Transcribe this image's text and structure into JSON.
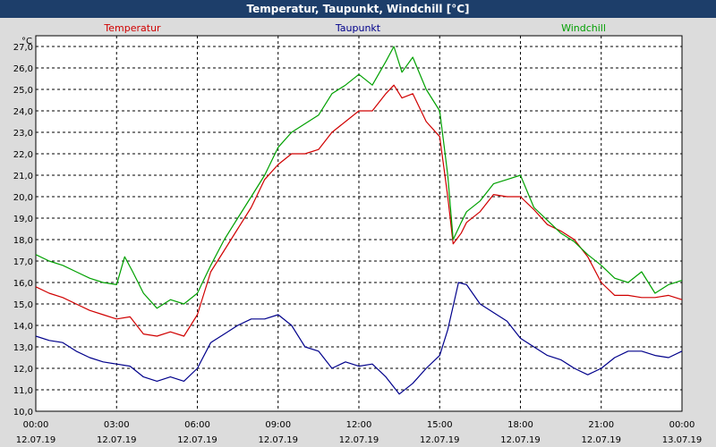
{
  "chart_data": {
    "type": "line",
    "title": "Temperatur, Taupunkt, Windchill [°C]",
    "ylabel": "°C",
    "ylim": [
      10.0,
      27.5
    ],
    "xlim": [
      0,
      24
    ],
    "grid": true,
    "y_ticks": [
      "10,0",
      "11,0",
      "12,0",
      "13,0",
      "14,0",
      "15,0",
      "16,0",
      "17,0",
      "18,0",
      "19,0",
      "20,0",
      "21,0",
      "22,0",
      "23,0",
      "24,0",
      "25,0",
      "26,0",
      "27,0"
    ],
    "y_tick_values": [
      10,
      11,
      12,
      13,
      14,
      15,
      16,
      17,
      18,
      19,
      20,
      21,
      22,
      23,
      24,
      25,
      26,
      27
    ],
    "x_ticks": [
      {
        "time": "00:00",
        "date": "12.07.19",
        "hour": 0
      },
      {
        "time": "03:00",
        "date": "12.07.19",
        "hour": 3
      },
      {
        "time": "06:00",
        "date": "12.07.19",
        "hour": 6
      },
      {
        "time": "09:00",
        "date": "12.07.19",
        "hour": 9
      },
      {
        "time": "12:00",
        "date": "12.07.19",
        "hour": 12
      },
      {
        "time": "15:00",
        "date": "12.07.19",
        "hour": 15
      },
      {
        "time": "18:00",
        "date": "12.07.19",
        "hour": 18
      },
      {
        "time": "21:00",
        "date": "12.07.19",
        "hour": 21
      },
      {
        "time": "00:00",
        "date": "13.07.19",
        "hour": 24
      }
    ],
    "series": [
      {
        "name": "Temperatur",
        "color": "#d00000",
        "x": [
          0,
          0.5,
          1,
          1.5,
          2,
          2.5,
          3,
          3.5,
          4,
          4.5,
          5,
          5.5,
          6,
          6.5,
          7,
          7.5,
          8,
          8.5,
          9,
          9.5,
          10,
          10.5,
          11,
          11.5,
          12,
          12.5,
          13,
          13.3,
          13.6,
          14,
          14.5,
          15,
          15.3,
          15.5,
          15.8,
          16,
          16.5,
          17,
          17.5,
          18,
          18.5,
          19,
          19.5,
          20,
          20.5,
          21,
          21.5,
          22,
          22.5,
          23,
          23.5,
          24
        ],
        "y": [
          15.8,
          15.5,
          15.3,
          15.0,
          14.7,
          14.5,
          14.3,
          14.4,
          13.6,
          13.5,
          13.7,
          13.5,
          14.5,
          16.5,
          17.5,
          18.5,
          19.5,
          20.8,
          21.5,
          22.0,
          22.0,
          22.2,
          23.0,
          23.5,
          24.0,
          24.0,
          24.8,
          25.2,
          24.6,
          24.8,
          23.5,
          22.8,
          20.0,
          17.8,
          18.3,
          18.8,
          19.3,
          20.1,
          20.0,
          20.0,
          19.4,
          18.7,
          18.4,
          18.0,
          17.2,
          16.0,
          15.4,
          15.4,
          15.3,
          15.3,
          15.4,
          15.2
        ]
      },
      {
        "name": "Taupunkt",
        "color": "#00008b",
        "x": [
          0,
          0.5,
          1,
          1.5,
          2,
          2.5,
          3,
          3.5,
          4,
          4.5,
          5,
          5.5,
          6,
          6.5,
          7,
          7.5,
          8,
          8.5,
          9,
          9.5,
          10,
          10.5,
          11,
          11.5,
          12,
          12.5,
          13,
          13.5,
          14,
          14.5,
          15,
          15.3,
          15.7,
          16,
          16.5,
          17,
          17.5,
          18,
          18.5,
          19,
          19.5,
          20,
          20.5,
          21,
          21.5,
          22,
          22.5,
          23,
          23.5,
          24
        ],
        "y": [
          13.5,
          13.3,
          13.2,
          12.8,
          12.5,
          12.3,
          12.2,
          12.1,
          11.6,
          11.4,
          11.6,
          11.4,
          12.0,
          13.2,
          13.6,
          14.0,
          14.3,
          14.3,
          14.5,
          14.0,
          13.0,
          12.8,
          12.0,
          12.3,
          12.1,
          12.2,
          11.6,
          10.8,
          11.3,
          12.0,
          12.6,
          13.8,
          16.0,
          15.9,
          15.0,
          14.6,
          14.2,
          13.4,
          13.0,
          12.6,
          12.4,
          12.0,
          11.7,
          12.0,
          12.5,
          12.8,
          12.8,
          12.6,
          12.5,
          12.8
        ]
      },
      {
        "name": "Windchill",
        "color": "#00a000",
        "x": [
          0,
          0.5,
          1,
          1.5,
          2,
          2.5,
          3,
          3.3,
          3.6,
          4,
          4.5,
          5,
          5.5,
          6,
          6.5,
          7,
          7.5,
          8,
          8.5,
          9,
          9.5,
          10,
          10.5,
          11,
          11.5,
          12,
          12.5,
          13,
          13.3,
          13.6,
          14,
          14.5,
          15,
          15.3,
          15.5,
          15.8,
          16,
          16.5,
          17,
          17.5,
          18,
          18.5,
          19,
          19.5,
          20,
          20.5,
          21,
          21.5,
          22,
          22.5,
          23,
          23.5,
          24
        ],
        "y": [
          17.3,
          17.0,
          16.8,
          16.5,
          16.2,
          16.0,
          15.9,
          17.2,
          16.5,
          15.5,
          14.8,
          15.2,
          15.0,
          15.5,
          16.8,
          18.0,
          19.0,
          20.0,
          21.0,
          22.3,
          23.0,
          23.4,
          23.8,
          24.8,
          25.2,
          25.7,
          25.2,
          26.3,
          27.0,
          25.8,
          26.5,
          25.0,
          24.0,
          21.0,
          18.0,
          18.8,
          19.3,
          19.8,
          20.6,
          20.8,
          21.0,
          19.5,
          18.9,
          18.3,
          17.9,
          17.3,
          16.8,
          16.2,
          16.0,
          16.5,
          15.5,
          15.9,
          16.1
        ]
      }
    ]
  }
}
